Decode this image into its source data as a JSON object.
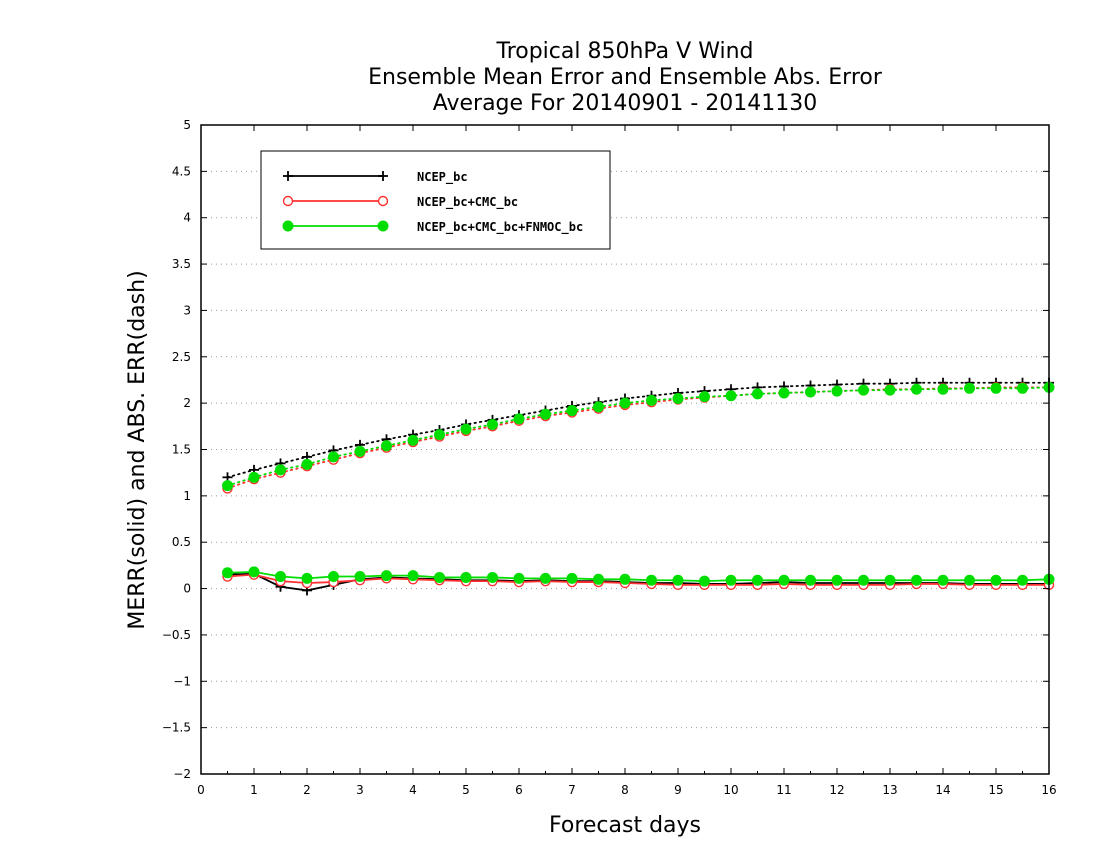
{
  "chart_data": {
    "type": "line",
    "title_lines": [
      "Tropical 850hPa V Wind",
      "Ensemble Mean Error and Ensemble Abs. Error",
      "Average For 20140901 - 20141130"
    ],
    "xlabel": "Forecast days",
    "ylabel": "MERR(solid) and ABS. ERR(dash)",
    "xlim": [
      0,
      16
    ],
    "ylim": [
      -2,
      5
    ],
    "x_ticks": [
      0,
      1,
      2,
      3,
      4,
      5,
      6,
      7,
      8,
      9,
      10,
      11,
      12,
      13,
      14,
      15,
      16
    ],
    "y_ticks": [
      -2,
      -1.5,
      -1,
      -0.5,
      0,
      0.5,
      1,
      1.5,
      2,
      2.5,
      3,
      3.5,
      4,
      4.5,
      5
    ],
    "grid": "horizontal-dotted",
    "legend_position": "top-left",
    "x": [
      0.5,
      1,
      1.5,
      2,
      2.5,
      3,
      3.5,
      4,
      4.5,
      5,
      5.5,
      6,
      6.5,
      7,
      7.5,
      8,
      8.5,
      9,
      9.5,
      10,
      10.5,
      11,
      11.5,
      12,
      12.5,
      13,
      13.5,
      14,
      14.5,
      15,
      15.5,
      16
    ],
    "series": [
      {
        "name": "NCEP_bc",
        "color": "#000000",
        "marker": "plus",
        "merr": [
          0.15,
          0.16,
          0.02,
          -0.02,
          0.04,
          0.1,
          0.12,
          0.11,
          0.1,
          0.09,
          0.09,
          0.08,
          0.09,
          0.08,
          0.08,
          0.07,
          0.06,
          0.06,
          0.05,
          0.05,
          0.06,
          0.07,
          0.06,
          0.06,
          0.06,
          0.06,
          0.06,
          0.06,
          0.05,
          0.05,
          0.05,
          0.05
        ],
        "abs_err": [
          1.2,
          1.28,
          1.35,
          1.42,
          1.49,
          1.55,
          1.61,
          1.66,
          1.71,
          1.77,
          1.82,
          1.87,
          1.92,
          1.97,
          2.01,
          2.05,
          2.08,
          2.11,
          2.13,
          2.15,
          2.17,
          2.18,
          2.19,
          2.2,
          2.21,
          2.21,
          2.22,
          2.22,
          2.22,
          2.22,
          2.22,
          2.22
        ]
      },
      {
        "name": "NCEP_bc+CMC_bc",
        "color": "#ff3030",
        "marker": "open-circle",
        "merr": [
          0.13,
          0.15,
          0.08,
          0.06,
          0.07,
          0.09,
          0.11,
          0.1,
          0.09,
          0.08,
          0.08,
          0.07,
          0.08,
          0.07,
          0.07,
          0.06,
          0.05,
          0.04,
          0.04,
          0.04,
          0.04,
          0.05,
          0.04,
          0.04,
          0.04,
          0.04,
          0.05,
          0.05,
          0.04,
          0.04,
          0.04,
          0.04
        ],
        "abs_err": [
          1.08,
          1.18,
          1.25,
          1.32,
          1.39,
          1.46,
          1.52,
          1.58,
          1.64,
          1.7,
          1.75,
          1.81,
          1.86,
          1.9,
          1.94,
          1.98,
          2.01,
          2.04,
          2.06,
          2.08,
          2.1,
          2.11,
          2.12,
          2.13,
          2.14,
          2.15,
          2.15,
          2.16,
          2.16,
          2.17,
          2.17,
          2.17
        ]
      },
      {
        "name": "NCEP_bc+CMC_bc+FNMOC_bc",
        "color": "#00dd00",
        "marker": "filled-circle",
        "merr": [
          0.17,
          0.18,
          0.13,
          0.11,
          0.13,
          0.13,
          0.14,
          0.14,
          0.12,
          0.12,
          0.12,
          0.11,
          0.11,
          0.11,
          0.1,
          0.1,
          0.09,
          0.09,
          0.08,
          0.09,
          0.09,
          0.09,
          0.09,
          0.09,
          0.09,
          0.09,
          0.09,
          0.09,
          0.09,
          0.09,
          0.09,
          0.1
        ],
        "abs_err": [
          1.11,
          1.2,
          1.28,
          1.34,
          1.42,
          1.48,
          1.54,
          1.6,
          1.66,
          1.72,
          1.77,
          1.83,
          1.88,
          1.92,
          1.96,
          2.0,
          2.03,
          2.05,
          2.07,
          2.08,
          2.1,
          2.11,
          2.12,
          2.13,
          2.14,
          2.14,
          2.15,
          2.15,
          2.16,
          2.16,
          2.16,
          2.17
        ]
      }
    ]
  }
}
